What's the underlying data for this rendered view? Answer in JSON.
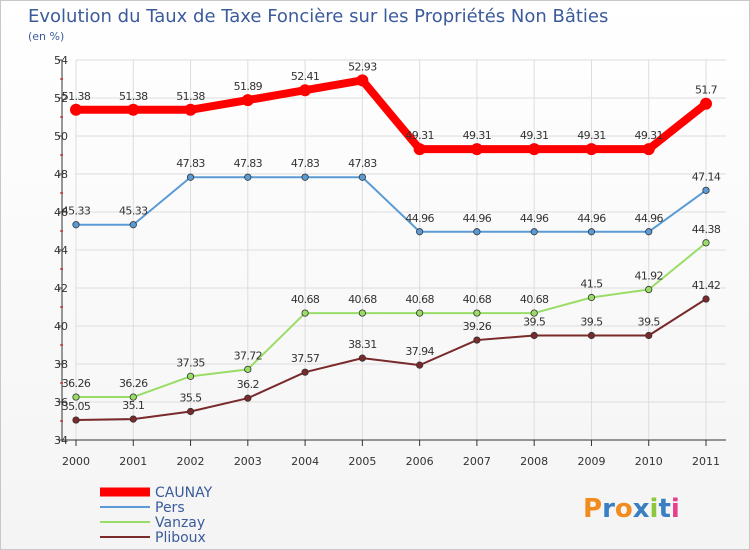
{
  "chart_data": {
    "type": "line",
    "title": "Evolution du Taux de Taxe Foncière sur les Propriétés Non Bâties",
    "subtitle": "(en %)",
    "x": [
      "2000",
      "2001",
      "2002",
      "2003",
      "2004",
      "2005",
      "2006",
      "2007",
      "2008",
      "2009",
      "2010",
      "2011"
    ],
    "ylim": [
      34,
      54
    ],
    "yticks": [
      34,
      36,
      38,
      40,
      42,
      44,
      46,
      48,
      50,
      52,
      54
    ],
    "grid": true,
    "legend_position": "bottom-left",
    "series": [
      {
        "name": "CAUNAY",
        "color": "#ff0000",
        "width": 8,
        "values": [
          51.38,
          51.38,
          51.38,
          51.89,
          52.41,
          52.93,
          49.31,
          49.31,
          49.31,
          49.31,
          49.31,
          51.7
        ],
        "labels": [
          "51.38",
          "51.38",
          "51.38",
          "51.89",
          "52.41",
          "52.93",
          "49.31",
          "49.31",
          "49.31",
          "49.31",
          "49.31",
          "51.7"
        ]
      },
      {
        "name": "Pers",
        "color": "#5b9bd5",
        "width": 2,
        "values": [
          45.33,
          45.33,
          47.83,
          47.83,
          47.83,
          47.83,
          44.96,
          44.96,
          44.96,
          44.96,
          44.96,
          47.14
        ],
        "labels": [
          "45.33",
          "45.33",
          "47.83",
          "47.83",
          "47.83",
          "47.83",
          "44.96",
          "44.96",
          "44.96",
          "44.96",
          "44.96",
          "47.14"
        ]
      },
      {
        "name": "Vanzay",
        "color": "#99dd66",
        "width": 2,
        "values": [
          36.26,
          36.26,
          37.35,
          37.72,
          40.68,
          40.68,
          40.68,
          40.68,
          40.68,
          41.5,
          41.92,
          44.38
        ],
        "labels": [
          "36.26",
          "36.26",
          "37.35",
          "37.72",
          "40.68",
          "40.68",
          "40.68",
          "40.68",
          "40.68",
          "41.5",
          "41.92",
          "44.38"
        ]
      },
      {
        "name": "Pliboux",
        "color": "#7a2a2a",
        "width": 2,
        "values": [
          35.05,
          35.1,
          35.5,
          36.2,
          37.57,
          38.31,
          37.94,
          39.26,
          39.5,
          39.5,
          39.5,
          41.42
        ],
        "labels": [
          "35.05",
          "35.1",
          "35.5",
          "36.2",
          "37.57",
          "38.31",
          "37.94",
          "39.26",
          "39.5",
          "39.5",
          "39.5",
          "41.42"
        ]
      }
    ]
  },
  "branding": {
    "logo_text": "Proxiti",
    "letter_colors": [
      "#f28c1e",
      "#3a7fc4",
      "#f28c1e",
      "#3a7fc4",
      "#8dc63f",
      "#3a7fc4",
      "#e83e8c"
    ]
  }
}
